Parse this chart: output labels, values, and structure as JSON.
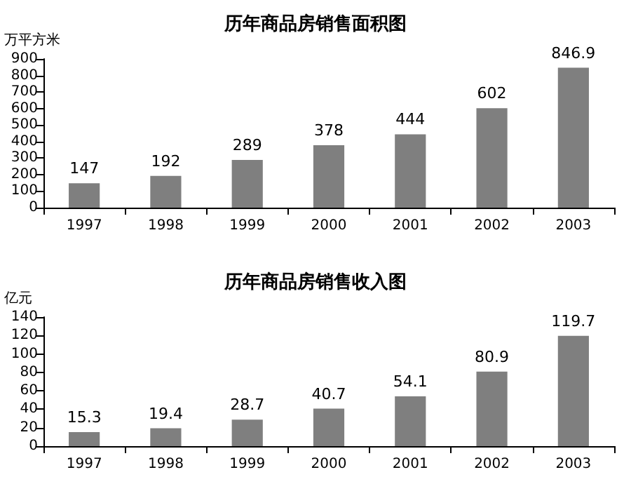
{
  "chart_data": [
    {
      "type": "bar",
      "title": "历年商品房销售面积图",
      "ylabel": "万平方米",
      "categories": [
        "1997",
        "1998",
        "1999",
        "2000",
        "2001",
        "2002",
        "2003"
      ],
      "values": [
        147,
        192,
        289,
        378,
        444,
        602,
        846.9
      ],
      "color": "#7f7f7f",
      "ylim": [
        0,
        900
      ],
      "yticks": [
        0,
        100,
        200,
        300,
        400,
        500,
        600,
        700,
        800,
        900
      ],
      "data_labels": true
    },
    {
      "type": "bar",
      "title": "历年商品房销售收入图",
      "ylabel": "亿元",
      "categories": [
        "1997",
        "1998",
        "1999",
        "2000",
        "2001",
        "2002",
        "2003"
      ],
      "values": [
        15.3,
        19.4,
        28.7,
        40.7,
        54.1,
        80.9,
        119.7
      ],
      "color": "#7f7f7f",
      "ylim": [
        0,
        140
      ],
      "yticks": [
        0,
        20,
        40,
        60,
        80,
        100,
        120,
        140
      ],
      "data_labels": true
    }
  ]
}
